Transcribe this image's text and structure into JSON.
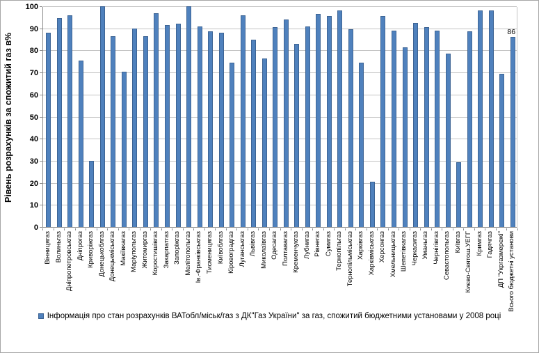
{
  "chart_data": {
    "type": "bar",
    "title": "",
    "xlabel": "",
    "ylabel": "Рівень розрахунків за спожитий газ в%",
    "ylim": [
      0,
      100
    ],
    "yticks": [
      0,
      10,
      20,
      30,
      40,
      50,
      60,
      70,
      80,
      90,
      100
    ],
    "grid": true,
    "legend_position": "bottom",
    "legend": [
      "Інформація про стан розрахунків ВАТобл/міськ/газ з ДК\"Газ України\" за газ, спожитий бюджетними установами у 2008 році"
    ],
    "bar_color": "#4f81bd",
    "bar_border_color": "#3d6494",
    "gridline_color": "#c3c3c3",
    "axis_color": "#8c8c8c",
    "categories": [
      "Вінницягаз",
      "Волиньгаз",
      "Дніпропетровськгаз",
      "Дніпрогаз",
      "Криворіжгаз",
      "Донецькоблгаз",
      "Донецькміськгаз",
      "Макіївкагаз",
      "Маріупольгаз",
      "Житомиргаз",
      "Коростишівгаз",
      "Закарпатгаз",
      "Запоріжгаз",
      "Мелітопольгаз",
      "Ів.-Франківськгаз",
      "Тисменицягаз",
      "Київоблгаз",
      "Кіровоградгаз",
      "Луганськгаз",
      "Львівгаз",
      "Миколаївгаз",
      "Одесагаз",
      "Полтавагаз",
      "Кременчукгаз",
      "Лубнигаз",
      "Рівнегаз",
      "Сумигаз",
      "Тернопільгаз",
      "Тернопільміськгаз",
      "Харківгаз",
      "Харківміськгаз",
      "Херсонгаз",
      "Хмельницькгаз",
      "Шепетівкагаз",
      "Черкасигаз",
      "Уманьгаз",
      "Чернігівгаз",
      "Севастопольгаз",
      "Київгаз",
      "Києво-Святош.УЕГГ",
      "Кримгаз",
      "Гадячгаз",
      "ДП \"Укргазмережі\"",
      "Всього бюджетні установи"
    ],
    "values": [
      88,
      94.5,
      96,
      75.5,
      30,
      100,
      86.5,
      70.5,
      90,
      86.5,
      97,
      91.5,
      92,
      100,
      91,
      88.5,
      88,
      74.5,
      96,
      85,
      76.5,
      90.5,
      94,
      83,
      91,
      96.5,
      95.5,
      98,
      89.5,
      74.5,
      20.5,
      95.5,
      89,
      81.5,
      92.5,
      90.5,
      89,
      78.5,
      29.5,
      88.5,
      98,
      98,
      69.5,
      86
    ],
    "data_labels": {
      "43": "86"
    }
  }
}
